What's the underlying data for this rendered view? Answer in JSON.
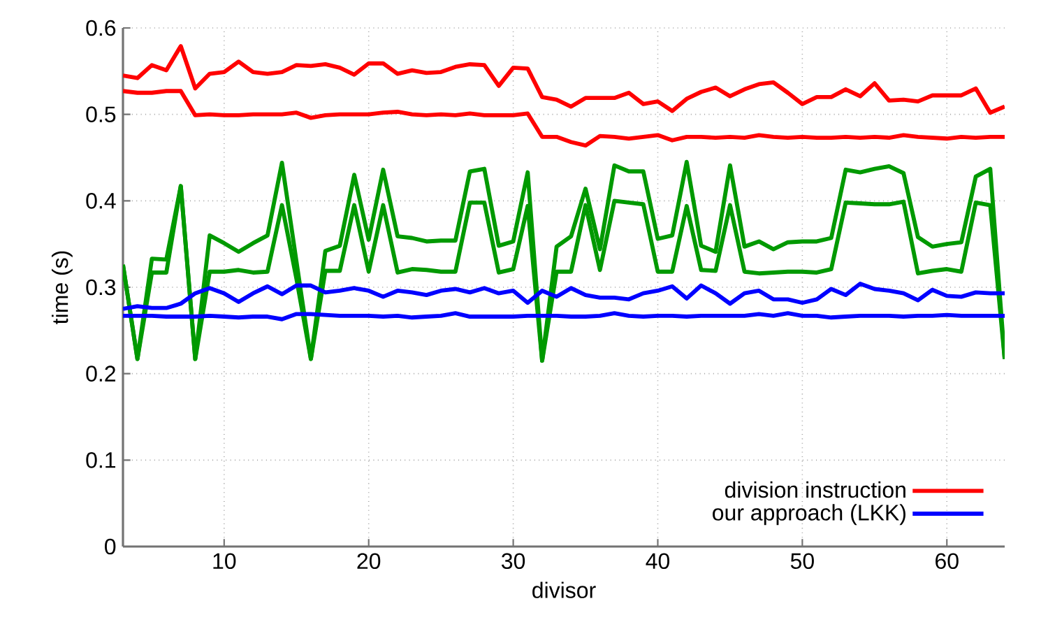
{
  "chart_data": {
    "type": "line",
    "xlabel": "divisor",
    "ylabel": "time (s)",
    "x": [
      3,
      4,
      5,
      6,
      7,
      8,
      9,
      10,
      11,
      12,
      13,
      14,
      15,
      16,
      17,
      18,
      19,
      20,
      21,
      22,
      23,
      24,
      25,
      26,
      27,
      28,
      29,
      30,
      31,
      32,
      33,
      34,
      35,
      36,
      37,
      38,
      39,
      40,
      41,
      42,
      43,
      44,
      45,
      46,
      47,
      48,
      49,
      50,
      51,
      52,
      53,
      54,
      55,
      56,
      57,
      58,
      59,
      60,
      61,
      62,
      63,
      64
    ],
    "series": [
      {
        "name": "division instruction",
        "color": "#ff0000",
        "values": [
          0.545,
          0.542,
          0.557,
          0.551,
          0.579,
          0.53,
          0.547,
          0.549,
          0.561,
          0.549,
          0.547,
          0.549,
          0.557,
          0.556,
          0.558,
          0.554,
          0.546,
          0.559,
          0.559,
          0.547,
          0.551,
          0.548,
          0.549,
          0.555,
          0.558,
          0.557,
          0.533,
          0.554,
          0.553,
          0.52,
          0.517,
          0.509,
          0.519,
          0.519,
          0.519,
          0.525,
          0.512,
          0.515,
          0.504,
          0.518,
          0.526,
          0.531,
          0.521,
          0.529,
          0.535,
          0.537,
          0.525,
          0.512,
          0.52,
          0.52,
          0.529,
          0.521,
          0.536,
          0.516,
          0.517,
          0.515,
          0.522,
          0.522,
          0.522,
          0.53,
          0.502,
          0.509
        ]
      },
      {
        "color": "#ff0000",
        "values": [
          0.527,
          0.525,
          0.525,
          0.527,
          0.527,
          0.499,
          0.5,
          0.499,
          0.499,
          0.5,
          0.5,
          0.5,
          0.502,
          0.496,
          0.499,
          0.5,
          0.5,
          0.5,
          0.502,
          0.503,
          0.5,
          0.499,
          0.5,
          0.499,
          0.501,
          0.499,
          0.499,
          0.499,
          0.501,
          0.474,
          0.474,
          0.468,
          0.464,
          0.475,
          0.474,
          0.472,
          0.474,
          0.476,
          0.47,
          0.474,
          0.474,
          0.473,
          0.474,
          0.473,
          0.476,
          0.474,
          0.473,
          0.474,
          0.473,
          0.473,
          0.474,
          0.473,
          0.474,
          0.473,
          0.476,
          0.474,
          0.473,
          0.472,
          0.474,
          0.473,
          0.474,
          0.474
        ]
      },
      {
        "color": "#009900",
        "values": [
          0.326,
          0.217,
          0.333,
          0.332,
          0.417,
          0.217,
          0.36,
          0.351,
          0.341,
          0.351,
          0.36,
          0.444,
          0.33,
          0.217,
          0.342,
          0.348,
          0.43,
          0.355,
          0.436,
          0.359,
          0.357,
          0.353,
          0.354,
          0.354,
          0.434,
          0.437,
          0.348,
          0.353,
          0.433,
          0.215,
          0.347,
          0.359,
          0.414,
          0.344,
          0.441,
          0.434,
          0.434,
          0.356,
          0.36,
          0.445,
          0.348,
          0.341,
          0.441,
          0.347,
          0.353,
          0.344,
          0.352,
          0.353,
          0.353,
          0.357,
          0.436,
          0.433,
          0.437,
          0.44,
          0.432,
          0.358,
          0.347,
          0.35,
          0.352,
          0.428,
          0.437,
          0.217
        ]
      },
      {
        "color": "#009900",
        "values": [
          0.326,
          0.217,
          0.317,
          0.317,
          0.417,
          0.217,
          0.318,
          0.318,
          0.32,
          0.317,
          0.318,
          0.395,
          0.31,
          0.217,
          0.319,
          0.319,
          0.395,
          0.318,
          0.395,
          0.317,
          0.321,
          0.32,
          0.318,
          0.318,
          0.398,
          0.398,
          0.317,
          0.321,
          0.394,
          0.215,
          0.318,
          0.318,
          0.395,
          0.32,
          0.4,
          0.398,
          0.396,
          0.318,
          0.318,
          0.394,
          0.32,
          0.319,
          0.395,
          0.318,
          0.316,
          0.317,
          0.318,
          0.318,
          0.317,
          0.321,
          0.398,
          0.397,
          0.396,
          0.396,
          0.399,
          0.316,
          0.319,
          0.321,
          0.318,
          0.398,
          0.395,
          0.217
        ]
      },
      {
        "name": "our approach (LKK)",
        "color": "#0000ff",
        "values": [
          0.275,
          0.278,
          0.276,
          0.276,
          0.281,
          0.293,
          0.299,
          0.293,
          0.283,
          0.293,
          0.301,
          0.292,
          0.302,
          0.302,
          0.294,
          0.296,
          0.299,
          0.296,
          0.289,
          0.296,
          0.294,
          0.291,
          0.296,
          0.298,
          0.294,
          0.299,
          0.293,
          0.296,
          0.282,
          0.296,
          0.289,
          0.299,
          0.291,
          0.288,
          0.288,
          0.286,
          0.293,
          0.296,
          0.301,
          0.287,
          0.302,
          0.293,
          0.281,
          0.293,
          0.296,
          0.286,
          0.286,
          0.282,
          0.286,
          0.298,
          0.291,
          0.304,
          0.298,
          0.296,
          0.293,
          0.285,
          0.297,
          0.29,
          0.289,
          0.294,
          0.293,
          0.293
        ]
      },
      {
        "color": "#0000ff",
        "values": [
          0.267,
          0.267,
          0.267,
          0.266,
          0.266,
          0.266,
          0.267,
          0.266,
          0.265,
          0.266,
          0.266,
          0.263,
          0.269,
          0.269,
          0.268,
          0.267,
          0.267,
          0.267,
          0.266,
          0.267,
          0.265,
          0.266,
          0.267,
          0.27,
          0.266,
          0.266,
          0.266,
          0.266,
          0.267,
          0.267,
          0.267,
          0.266,
          0.266,
          0.267,
          0.27,
          0.267,
          0.266,
          0.267,
          0.267,
          0.266,
          0.267,
          0.267,
          0.267,
          0.267,
          0.269,
          0.267,
          0.27,
          0.267,
          0.267,
          0.265,
          0.266,
          0.267,
          0.267,
          0.267,
          0.266,
          0.267,
          0.267,
          0.268,
          0.267,
          0.267,
          0.267,
          0.267
        ]
      }
    ],
    "xlim": [
      3,
      64
    ],
    "ylim": [
      0,
      0.6
    ],
    "xticks": [
      10,
      20,
      30,
      40,
      50,
      60
    ],
    "yticks": [
      0,
      0.1,
      0.2,
      0.3,
      0.4,
      0.5,
      0.6
    ],
    "grid": true,
    "legend": "bottom right",
    "marker": "none",
    "line_style": "solid"
  }
}
